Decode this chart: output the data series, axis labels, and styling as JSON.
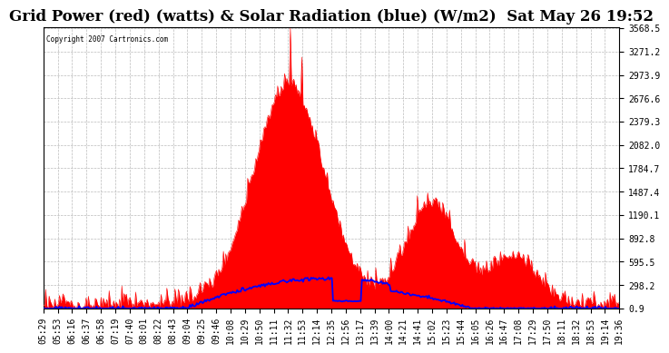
{
  "title": "Grid Power (red) (watts) & Solar Radiation (blue) (W/m2)  Sat May 26 19:52",
  "copyright": "Copyright 2007 Cartronics.com",
  "yticks": [
    0.9,
    298.2,
    595.5,
    892.8,
    1190.1,
    1487.4,
    1784.7,
    2082.0,
    2379.3,
    2676.6,
    2973.9,
    3271.2,
    3568.5
  ],
  "ymax": 3568.5,
  "ymin": 0.0,
  "background_color": "#ffffff",
  "grid_color": "#bbbbbb",
  "red_color": "#ff0000",
  "blue_color": "#0000ff",
  "title_fontsize": 12,
  "tick_label_fontsize": 7,
  "xtick_labels": [
    "05:29",
    "05:53",
    "06:16",
    "06:37",
    "06:58",
    "07:19",
    "07:40",
    "08:01",
    "08:22",
    "08:43",
    "09:04",
    "09:25",
    "09:46",
    "10:08",
    "10:29",
    "10:50",
    "11:11",
    "11:32",
    "11:53",
    "12:14",
    "12:35",
    "12:56",
    "13:17",
    "13:39",
    "14:00",
    "14:21",
    "14:41",
    "15:02",
    "15:23",
    "15:44",
    "16:05",
    "16:26",
    "16:47",
    "17:08",
    "17:29",
    "17:50",
    "18:11",
    "18:32",
    "18:53",
    "19:14",
    "19:36"
  ]
}
